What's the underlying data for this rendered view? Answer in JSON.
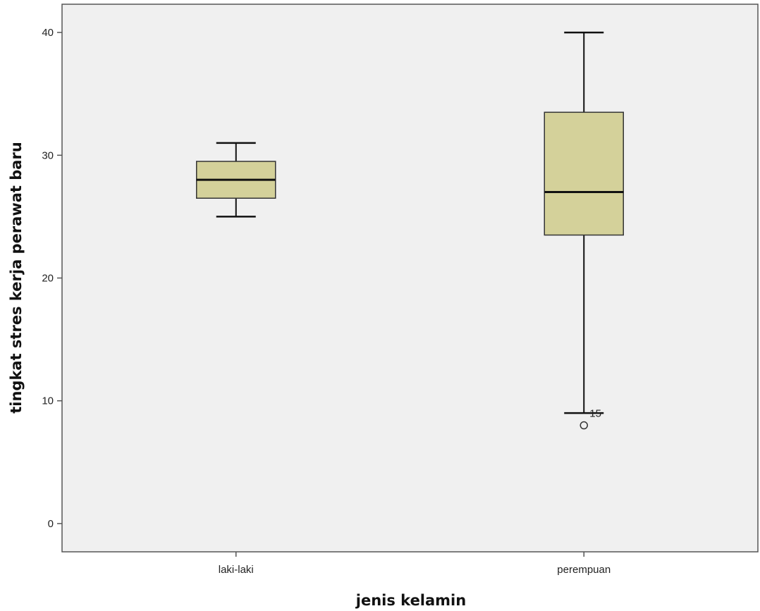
{
  "chart_data": {
    "type": "boxplot",
    "xlabel": "jenis kelamin",
    "ylabel": "tingkat stres kerja perawat baru",
    "ylim": [
      -2.3,
      42.3
    ],
    "yticks": [
      0,
      10,
      20,
      30,
      40
    ],
    "grid": false,
    "categories": [
      "laki-laki",
      "perempuan"
    ],
    "boxes": [
      {
        "category": "laki-laki",
        "whisker_low": 25,
        "q1": 26.5,
        "median": 28,
        "q3": 29.5,
        "whisker_high": 31,
        "outliers": []
      },
      {
        "category": "perempuan",
        "whisker_low": 9,
        "q1": 23.5,
        "median": 27,
        "q3": 33.5,
        "whisker_high": 40,
        "outliers": [
          {
            "value": 8,
            "label": "15"
          }
        ]
      }
    ],
    "colors": {
      "box_fill": "#d4d19a",
      "plot_bg": "#f0f0f0",
      "frame": "#555555",
      "lines": "#111111"
    }
  }
}
